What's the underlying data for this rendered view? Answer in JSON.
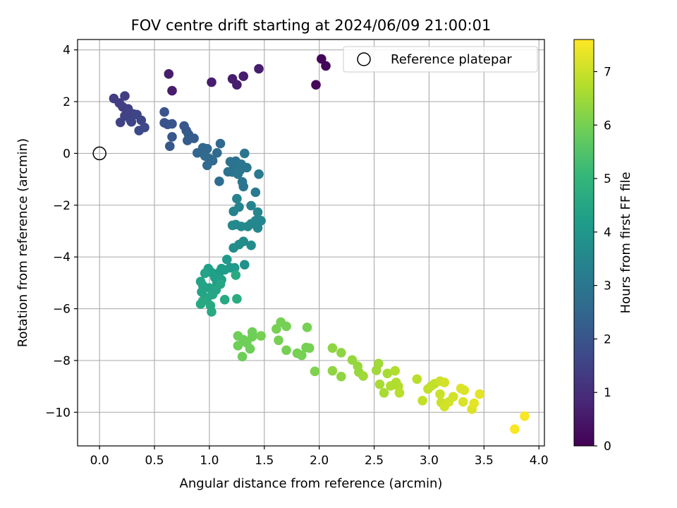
{
  "chart_data": {
    "type": "scatter",
    "title": "FOV centre drift starting at 2024/06/09 21:00:01",
    "xlabel": "Angular distance from reference (arcmin)",
    "ylabel": "Rotation from reference (arcmin)",
    "xlim": [
      -0.2,
      4.05
    ],
    "ylim": [
      -11.3,
      4.4
    ],
    "xticks": [
      0.0,
      0.5,
      1.0,
      1.5,
      2.0,
      2.5,
      3.0,
      3.5,
      4.0
    ],
    "xtick_labels": [
      "0.0",
      "0.5",
      "1.0",
      "1.5",
      "2.0",
      "2.5",
      "3.0",
      "3.5",
      "4.0"
    ],
    "yticks": [
      4,
      2,
      0,
      -2,
      -4,
      -6,
      -8,
      -10
    ],
    "ytick_labels": [
      "4",
      "2",
      "0",
      "−2",
      "−4",
      "−6",
      "−8",
      "−10"
    ],
    "grid": true,
    "legend": {
      "placement": "top-right",
      "entries": [
        "Reference platepar"
      ]
    },
    "reference_point": {
      "name": "Reference platepar",
      "x": 0.0,
      "y": 0.0
    },
    "colorbar": {
      "label": "Hours from first FF file",
      "colormap": "viridis",
      "range": [
        0,
        7.6
      ],
      "ticks": [
        0,
        1,
        2,
        3,
        4,
        5,
        6,
        7
      ],
      "tick_labels": [
        "0",
        "1",
        "2",
        "3",
        "4",
        "5",
        "6",
        "7"
      ],
      "colors": [
        "#440154",
        "#482878",
        "#3e4989",
        "#31688e",
        "#26828e",
        "#1f9e89",
        "#35b779",
        "#6ece58",
        "#b5de2b",
        "#fde725"
      ]
    },
    "series": [
      {
        "points": [
          [
            2.02,
            3.65,
            0.1
          ],
          [
            2.06,
            3.38,
            0.1
          ],
          [
            1.97,
            2.65,
            0.1
          ],
          [
            0.63,
            3.07,
            0.6
          ],
          [
            0.66,
            2.42,
            0.6
          ],
          [
            1.02,
            2.75,
            0.6
          ],
          [
            1.21,
            2.88,
            0.6
          ],
          [
            1.25,
            2.65,
            0.6
          ],
          [
            1.31,
            2.98,
            0.6
          ],
          [
            1.45,
            3.27,
            0.6
          ],
          [
            0.13,
            2.12,
            1.4
          ],
          [
            0.18,
            1.95,
            1.4
          ],
          [
            0.23,
            2.22,
            1.4
          ],
          [
            0.21,
            1.8,
            1.4
          ],
          [
            0.26,
            1.72,
            1.4
          ],
          [
            0.23,
            1.45,
            1.5
          ],
          [
            0.19,
            1.2,
            1.5
          ],
          [
            0.28,
            1.3,
            1.5
          ],
          [
            0.31,
            1.52,
            1.5
          ],
          [
            0.27,
            1.6,
            1.5
          ],
          [
            0.34,
            1.5,
            1.6
          ],
          [
            0.29,
            1.22,
            1.6
          ],
          [
            0.38,
            1.28,
            1.6
          ],
          [
            0.36,
            0.88,
            1.7
          ],
          [
            0.41,
            1.0,
            1.7
          ],
          [
            0.59,
            1.6,
            2.0
          ],
          [
            0.59,
            1.18,
            2.0
          ],
          [
            0.62,
            1.12,
            2.0
          ],
          [
            0.66,
            1.14,
            2.0
          ],
          [
            0.66,
            0.64,
            2.1
          ],
          [
            0.64,
            0.28,
            2.1
          ],
          [
            0.77,
            1.06,
            2.1
          ],
          [
            0.79,
            0.88,
            2.1
          ],
          [
            0.81,
            0.74,
            2.2
          ],
          [
            0.8,
            0.5,
            2.2
          ],
          [
            0.86,
            0.58,
            2.2
          ],
          [
            0.89,
            0.02,
            2.5
          ],
          [
            0.94,
            0.22,
            2.5
          ],
          [
            0.98,
            0.18,
            2.5
          ],
          [
            0.96,
            -0.1,
            2.6
          ],
          [
            1.0,
            -0.2,
            2.6
          ],
          [
            0.98,
            -0.46,
            2.6
          ],
          [
            1.03,
            -0.28,
            2.6
          ],
          [
            1.1,
            0.38,
            2.6
          ],
          [
            1.07,
            0.02,
            2.6
          ],
          [
            1.09,
            -1.08,
            2.7
          ],
          [
            1.17,
            -0.71,
            2.9
          ],
          [
            1.19,
            -0.32,
            2.9
          ],
          [
            1.22,
            -0.45,
            2.9
          ],
          [
            1.21,
            -0.72,
            2.9
          ],
          [
            1.24,
            -0.3,
            2.9
          ],
          [
            1.26,
            -0.5,
            3.0
          ],
          [
            1.26,
            -0.8,
            3.0
          ],
          [
            1.29,
            -0.42,
            3.0
          ],
          [
            1.28,
            -0.65,
            3.0
          ],
          [
            1.32,
            0.0,
            3.0
          ],
          [
            1.3,
            -1.1,
            3.0
          ],
          [
            1.31,
            -1.28,
            3.0
          ],
          [
            1.34,
            -0.55,
            3.0
          ],
          [
            1.45,
            -0.8,
            3.1
          ],
          [
            1.42,
            -1.5,
            3.1
          ],
          [
            1.25,
            -1.75,
            3.4
          ],
          [
            1.22,
            -2.24,
            3.4
          ],
          [
            1.27,
            -2.07,
            3.4
          ],
          [
            1.38,
            -2.02,
            3.4
          ],
          [
            1.44,
            -2.27,
            3.5
          ],
          [
            1.42,
            -2.6,
            3.5
          ],
          [
            1.47,
            -2.6,
            3.5
          ],
          [
            1.44,
            -2.88,
            3.5
          ],
          [
            1.38,
            -2.72,
            3.5
          ],
          [
            1.35,
            -2.82,
            3.6
          ],
          [
            1.21,
            -2.78,
            3.6
          ],
          [
            1.24,
            -2.75,
            3.6
          ],
          [
            1.29,
            -2.82,
            3.6
          ],
          [
            1.38,
            -3.55,
            3.7
          ],
          [
            1.31,
            -3.4,
            3.7
          ],
          [
            1.27,
            -3.52,
            3.7
          ],
          [
            1.22,
            -3.65,
            3.7
          ],
          [
            1.32,
            -4.3,
            3.8
          ],
          [
            1.16,
            -4.1,
            4.1
          ],
          [
            1.19,
            -4.42,
            4.1
          ],
          [
            1.23,
            -4.42,
            4.1
          ],
          [
            1.11,
            -4.45,
            4.2
          ],
          [
            1.09,
            -4.6,
            4.2
          ],
          [
            1.14,
            -4.5,
            4.2
          ],
          [
            1.02,
            -4.6,
            4.3
          ],
          [
            0.99,
            -4.45,
            4.3
          ],
          [
            1.05,
            -4.8,
            4.3
          ],
          [
            1.11,
            -4.88,
            4.3
          ],
          [
            1.07,
            -5.0,
            4.3
          ],
          [
            1.0,
            -5.2,
            4.4
          ],
          [
            0.96,
            -4.63,
            4.4
          ],
          [
            0.92,
            -4.95,
            4.4
          ],
          [
            0.94,
            -5.1,
            4.4
          ],
          [
            0.93,
            -5.35,
            4.4
          ],
          [
            0.96,
            -5.55,
            4.5
          ],
          [
            0.98,
            -5.6,
            4.5
          ],
          [
            1.03,
            -5.45,
            4.5
          ],
          [
            1.06,
            -5.28,
            4.5
          ],
          [
            1.1,
            -5.05,
            4.5
          ],
          [
            0.92,
            -5.82,
            4.6
          ],
          [
            0.94,
            -5.7,
            4.6
          ],
          [
            1.01,
            -5.88,
            4.6
          ],
          [
            1.02,
            -6.12,
            4.6
          ],
          [
            1.14,
            -5.65,
            4.6
          ],
          [
            1.25,
            -5.62,
            4.7
          ],
          [
            1.24,
            -4.7,
            4.6
          ],
          [
            1.26,
            -7.05,
            5.9
          ],
          [
            1.26,
            -7.43,
            5.9
          ],
          [
            1.31,
            -7.2,
            5.9
          ],
          [
            1.3,
            -7.85,
            5.9
          ],
          [
            1.34,
            -7.32,
            5.9
          ],
          [
            1.37,
            -7.55,
            5.9
          ],
          [
            1.39,
            -6.9,
            5.9
          ],
          [
            1.39,
            -7.08,
            5.9
          ],
          [
            1.47,
            -7.05,
            6.0
          ],
          [
            1.61,
            -6.78,
            6.0
          ],
          [
            1.65,
            -6.52,
            6.0
          ],
          [
            1.7,
            -6.68,
            6.0
          ],
          [
            1.63,
            -7.22,
            6.0
          ],
          [
            1.7,
            -7.6,
            6.0
          ],
          [
            1.8,
            -7.72,
            6.0
          ],
          [
            1.84,
            -7.8,
            6.0
          ],
          [
            1.88,
            -7.5,
            6.0
          ],
          [
            1.91,
            -7.52,
            6.0
          ],
          [
            1.89,
            -6.72,
            6.0
          ],
          [
            1.96,
            -8.42,
            6.1
          ],
          [
            2.12,
            -7.52,
            6.3
          ],
          [
            2.2,
            -7.7,
            6.3
          ],
          [
            2.12,
            -8.4,
            6.3
          ],
          [
            2.2,
            -8.62,
            6.3
          ],
          [
            2.3,
            -7.98,
            6.4
          ],
          [
            2.35,
            -8.22,
            6.4
          ],
          [
            2.36,
            -8.45,
            6.4
          ],
          [
            2.4,
            -8.6,
            6.5
          ],
          [
            2.52,
            -8.38,
            6.5
          ],
          [
            2.54,
            -8.12,
            6.5
          ],
          [
            2.55,
            -8.92,
            6.6
          ],
          [
            2.59,
            -9.25,
            6.6
          ],
          [
            2.62,
            -8.5,
            6.6
          ],
          [
            2.65,
            -8.98,
            6.7
          ],
          [
            2.69,
            -8.4,
            6.7
          ],
          [
            2.7,
            -8.85,
            6.7
          ],
          [
            2.72,
            -9.0,
            6.7
          ],
          [
            2.73,
            -9.25,
            6.8
          ],
          [
            2.89,
            -8.72,
            6.8
          ],
          [
            2.94,
            -9.55,
            6.9
          ],
          [
            2.99,
            -9.1,
            6.9
          ],
          [
            3.02,
            -8.98,
            6.9
          ],
          [
            3.05,
            -8.9,
            6.9
          ],
          [
            3.1,
            -8.8,
            7.0
          ],
          [
            3.1,
            -9.3,
            7.0
          ],
          [
            3.11,
            -9.62,
            7.0
          ],
          [
            3.14,
            -8.85,
            7.1
          ],
          [
            3.14,
            -9.78,
            7.1
          ],
          [
            3.18,
            -9.6,
            7.1
          ],
          [
            3.22,
            -9.4,
            7.1
          ],
          [
            3.29,
            -9.08,
            7.2
          ],
          [
            3.32,
            -9.15,
            7.2
          ],
          [
            3.31,
            -9.6,
            7.2
          ],
          [
            3.39,
            -9.88,
            7.2
          ],
          [
            3.41,
            -9.65,
            7.3
          ],
          [
            3.46,
            -9.3,
            7.3
          ],
          [
            3.78,
            -10.65,
            7.55
          ],
          [
            3.87,
            -10.15,
            7.55
          ]
        ]
      }
    ]
  }
}
